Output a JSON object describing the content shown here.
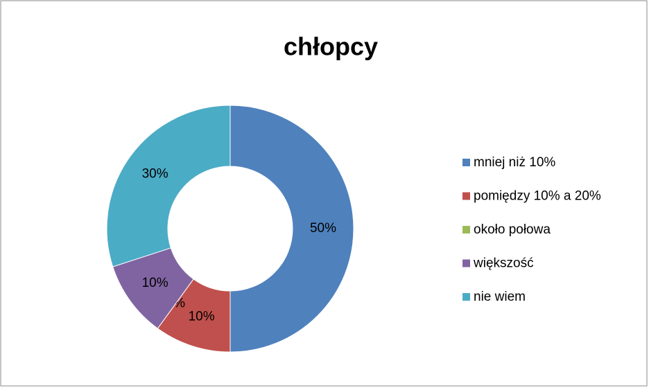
{
  "chart_data": {
    "type": "donut",
    "title": "chłopcy",
    "categories": [
      "mniej niż 10%",
      "pomiędzy 10% a 20%",
      "około połowa",
      "większość",
      "nie wiem"
    ],
    "values": [
      50,
      10,
      0,
      10,
      30
    ],
    "value_labels": [
      "50%",
      "10%",
      "0%",
      "10%",
      "30%"
    ],
    "colors": [
      "#4f81bd",
      "#c0504d",
      "#9bbb59",
      "#8064a2",
      "#4bacc6"
    ],
    "legend": "right"
  }
}
